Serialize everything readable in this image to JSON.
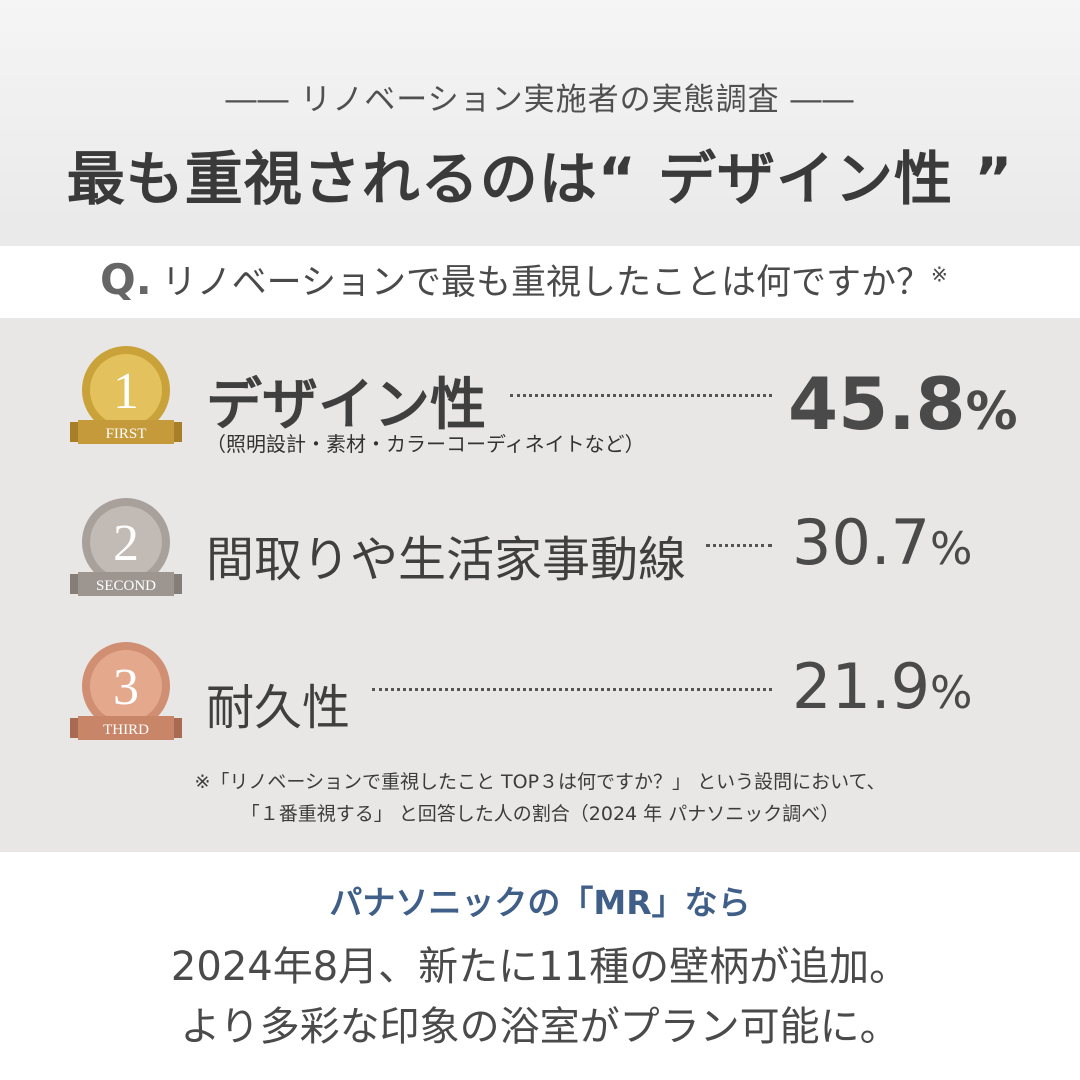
{
  "header": {
    "subtitle": "―― リノベーション実施者の実態調査 ――",
    "title": "最も重視されるのは“ デザイン性 ”"
  },
  "question": {
    "mark": "Q.",
    "text": "リノベーションで最も重視したことは何ですか？",
    "note": "※"
  },
  "ranking": [
    {
      "rank_number": "1",
      "rank_word": "FIRST",
      "label": "デザイン性",
      "sub": "（照明設計・素材・カラーコーディネイトなど）",
      "percent_value": "45.8",
      "percent_unit": "%",
      "medal_colors": {
        "outer": "#c9a23a",
        "inner": "#e3c25e",
        "ribbon": "#c49a3a",
        "text": "#ffffff"
      }
    },
    {
      "rank_number": "2",
      "rank_word": "SECOND",
      "label": "間取りや生活家事動線",
      "sub": "",
      "percent_value": "30.7",
      "percent_unit": "%",
      "medal_colors": {
        "outer": "#a8a09b",
        "inner": "#c1bab5",
        "ribbon": "#9d9590",
        "text": "#ffffff"
      }
    },
    {
      "rank_number": "3",
      "rank_word": "THIRD",
      "label": "耐久性",
      "sub": "",
      "percent_value": "21.9",
      "percent_unit": "%",
      "medal_colors": {
        "outer": "#d08e72",
        "inner": "#e4a98d",
        "ribbon": "#c98567",
        "text": "#ffffff"
      }
    }
  ],
  "footnote": {
    "line1": "※「リノベーションで重視したこと TOP３は何ですか？」 という設問において、",
    "line2": "「１番重視する」 と回答した人の割合（2024 年  パナソニック調べ）"
  },
  "cta": {
    "lead": "パナソニックの「MR」なら",
    "line1": "2024年8月、新たに11種の壁柄が追加。",
    "line2": "より多彩な印象の浴室がプラン可能に。"
  },
  "colors": {
    "header_bg": "#eeeeee",
    "panel_bg": "#e8e7e6",
    "accent_blue": "#3f5f88"
  }
}
